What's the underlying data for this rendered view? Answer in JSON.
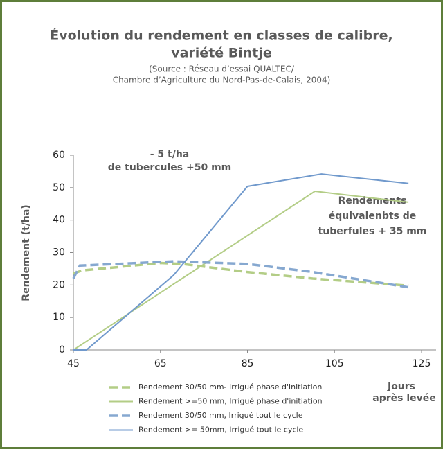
{
  "chart_data": {
    "type": "line",
    "title": [
      "Évolution du rendement en classes de calibre,",
      "variété Bintje"
    ],
    "subtitle": [
      "(Source : Réseau d’essai QUALTEC/",
      "Chambre d’Agriculture du Nord-Pas-de-Calais, 2004)"
    ],
    "ylabel": "Rendement (t/ha)",
    "xlabel": [
      "Jours",
      "après levée"
    ],
    "annotations": [
      [
        "- 5 t/ha",
        "de tubercules +50 mm"
      ],
      [
        "Rendements",
        "équivalenbts de",
        "tuberfules + 35 mm"
      ]
    ],
    "xlim": [
      45,
      125
    ],
    "xticks": [
      45,
      65,
      85,
      105,
      125
    ],
    "ylim": [
      0,
      60
    ],
    "yticks": [
      0,
      10,
      20,
      30,
      40,
      50,
      60
    ],
    "series": [
      {
        "name": "Rendement 30/50 mm- Irrigué phase d'initiation",
        "color": "#b3cd86",
        "dash": true,
        "x": [
          45,
          47,
          55,
          65,
          70,
          85,
          100,
          122
        ],
        "values": [
          23.5,
          24.5,
          25.5,
          26.8,
          26.5,
          24,
          22,
          19.8
        ]
      },
      {
        "name": "Rendement >=50 mm, Irrigué phase d'initiation",
        "color": "#b3cd86",
        "dash": false,
        "x": [
          45,
          100.5,
          122
        ],
        "values": [
          0,
          48.9,
          45.5
        ]
      },
      {
        "name": "Rendement 30/50 mm, Irrigué tout le cycle",
        "color": "#86a8d0",
        "dash": true,
        "x": [
          45,
          46.5,
          55,
          68,
          85,
          100,
          122
        ],
        "values": [
          22,
          26,
          26.5,
          27.3,
          26.5,
          24,
          19.3
        ]
      },
      {
        "name": "Rendement >= 50mm, Irrigué tout le cycle",
        "color": "#7099cc",
        "dash": false,
        "x": [
          45,
          48,
          68,
          85,
          102,
          122
        ],
        "values": [
          0,
          0,
          23,
          50.4,
          54.2,
          51.3
        ]
      }
    ]
  }
}
